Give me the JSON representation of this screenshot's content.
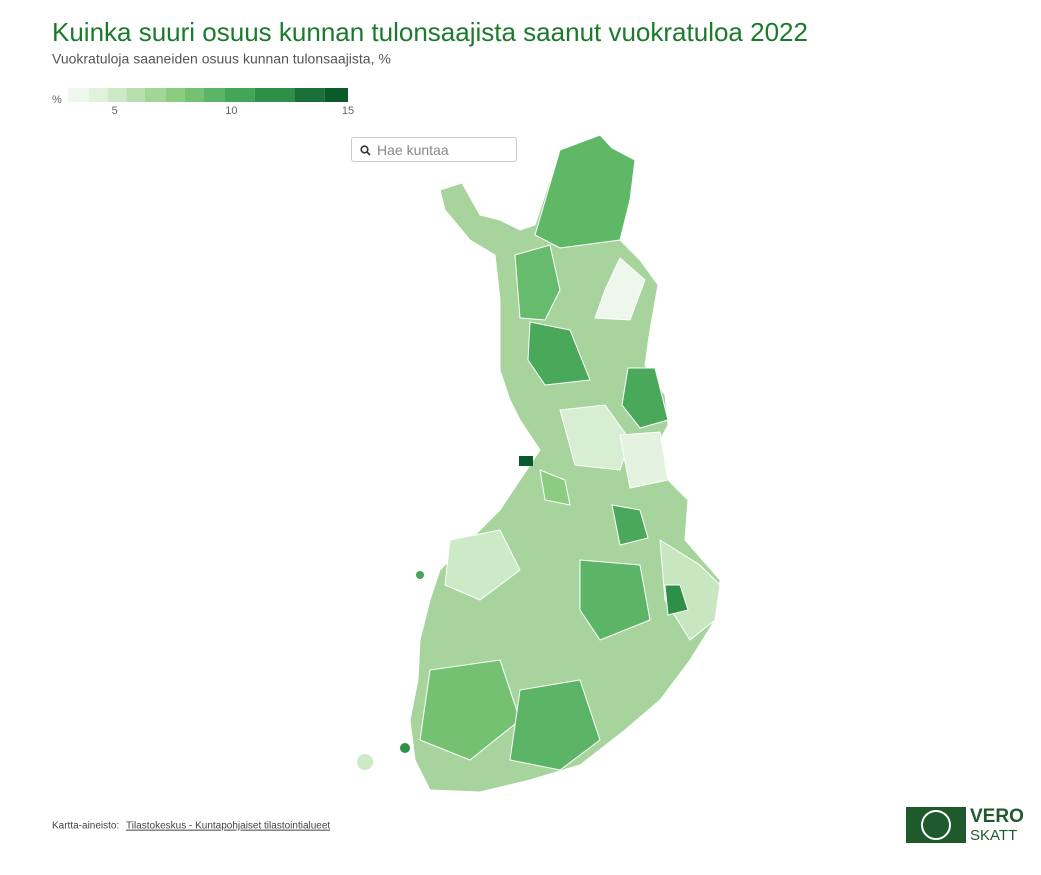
{
  "header": {
    "title": "Kuinka suuri osuus kunnan tulonsaajista saanut vuokratuloa 2022",
    "subtitle": "Vuokratuloja saaneiden osuus kunnan tulonsaajista, %"
  },
  "legend": {
    "unit": "%",
    "xlim": [
      3,
      15
    ],
    "xticks": [
      5,
      10,
      15
    ],
    "bins": [
      3,
      3.9,
      4.7,
      5.5,
      6.3,
      7.2,
      8,
      8.8,
      9.7,
      11,
      12.7,
      14,
      15
    ],
    "colors": [
      "#eef7ec",
      "#e0f2dc",
      "#cdeac6",
      "#b8e0ae",
      "#a1d696",
      "#8ccc81",
      "#74c172",
      "#5cb566",
      "#43a558",
      "#2e8f48",
      "#1a7038",
      "#0b5a2a"
    ]
  },
  "search": {
    "placeholder": "Hae kuntaa"
  },
  "source": {
    "prefix": "Kartta-aineisto:",
    "link": "Tilastokeskus - Kuntapohjaiset tilastointialueet"
  },
  "logo": {
    "line1": "VERO",
    "line2": "SKATT"
  }
}
